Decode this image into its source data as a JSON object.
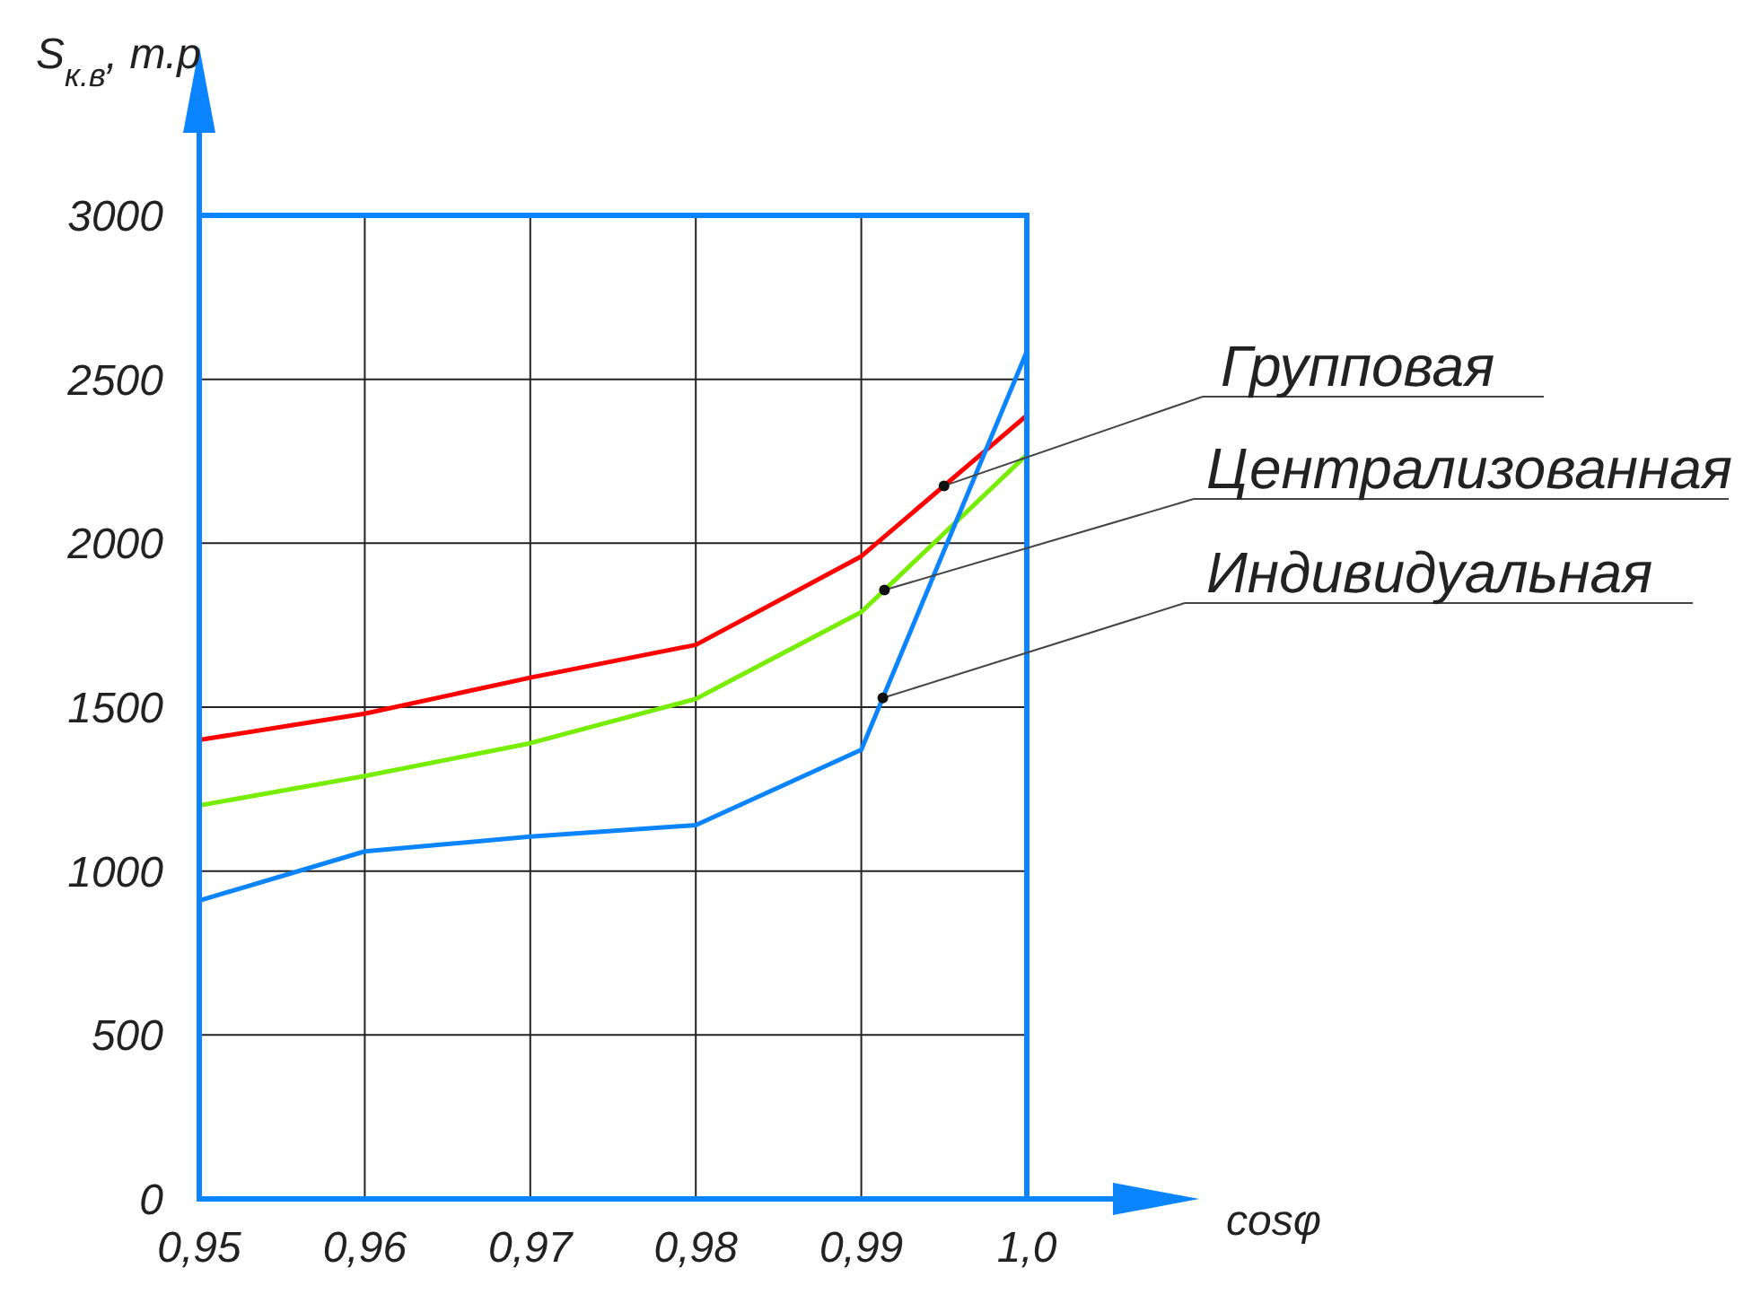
{
  "chart_data": {
    "type": "line",
    "xlabel": "cosφ",
    "ylabel": "S$_{к.в}$, т.р",
    "x": [
      0.95,
      0.96,
      0.97,
      0.98,
      0.99,
      1.0
    ],
    "series": [
      {
        "name": "Групповая",
        "color": "#ff0000",
        "values": [
          1400,
          1480,
          1590,
          1690,
          1960,
          2390
        ]
      },
      {
        "name": "Централизованная",
        "color": "#77ee00",
        "values": [
          1200,
          1290,
          1390,
          1525,
          1790,
          2270
        ]
      },
      {
        "name": "Индивидуальная",
        "color": "#0a84ff",
        "values": [
          910,
          1060,
          1105,
          1140,
          1370,
          2585
        ]
      }
    ],
    "xlim": [
      0.95,
      1.0
    ],
    "xticks": [
      {
        "value": 0.95,
        "label": "0,95"
      },
      {
        "value": 0.96,
        "label": "0,96"
      },
      {
        "value": 0.97,
        "label": "0,97"
      },
      {
        "value": 0.98,
        "label": "0,98"
      },
      {
        "value": 0.99,
        "label": "0,99"
      },
      {
        "value": 1.0,
        "label": "1,0"
      }
    ],
    "ylim": [
      0,
      3000
    ],
    "yticks": [
      0,
      500,
      1000,
      1500,
      2000,
      2500,
      3000
    ],
    "grid": true,
    "legend": "right",
    "marker": "none",
    "line_style": "solid"
  }
}
